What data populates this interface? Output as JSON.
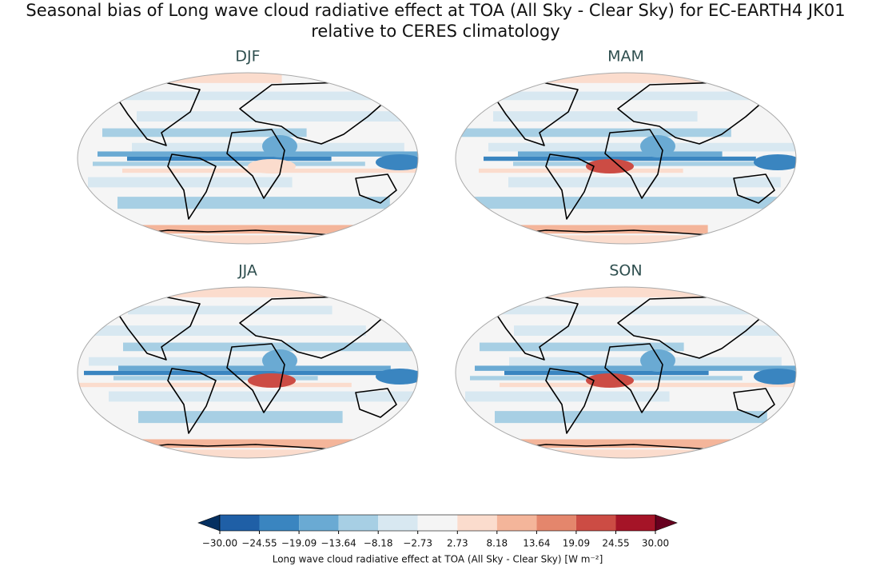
{
  "figure": {
    "title_lines": [
      "Seasonal bias of Long wave cloud radiative effect at TOA (All Sky - Clear Sky) for EC-EARTH4 JK01",
      "relative to CERES climatology"
    ],
    "panels": [
      {
        "title": "DJF"
      },
      {
        "title": "MAM"
      },
      {
        "title": "JJA"
      },
      {
        "title": "SON"
      }
    ],
    "colorbar": {
      "label": "Long wave cloud radiative effect at TOA (All Sky - Clear Sky) [W m⁻²]",
      "lim": [
        -30,
        30
      ],
      "ticks": [
        {
          "value": -30,
          "label": "−30.00"
        },
        {
          "value": -24.55,
          "label": "−24.55"
        },
        {
          "value": -19.09,
          "label": "−19.09"
        },
        {
          "value": -13.64,
          "label": "−13.64"
        },
        {
          "value": -8.18,
          "label": "−8.18"
        },
        {
          "value": -2.73,
          "label": "−2.73"
        },
        {
          "value": 2.73,
          "label": "2.73"
        },
        {
          "value": 8.18,
          "label": "8.18"
        },
        {
          "value": 13.64,
          "label": "13.64"
        },
        {
          "value": 19.09,
          "label": "19.09"
        },
        {
          "value": 24.55,
          "label": "24.55"
        },
        {
          "value": 30,
          "label": "30.00"
        }
      ],
      "colors": [
        "#1f5fa6",
        "#3a85c0",
        "#6aaad3",
        "#a7cfe4",
        "#d8e8f1",
        "#f5f5f5",
        "#fbdccd",
        "#f4b59a",
        "#e4866c",
        "#cc4c44",
        "#a51427"
      ],
      "under_color": "#053061",
      "over_color": "#67001f"
    }
  }
}
